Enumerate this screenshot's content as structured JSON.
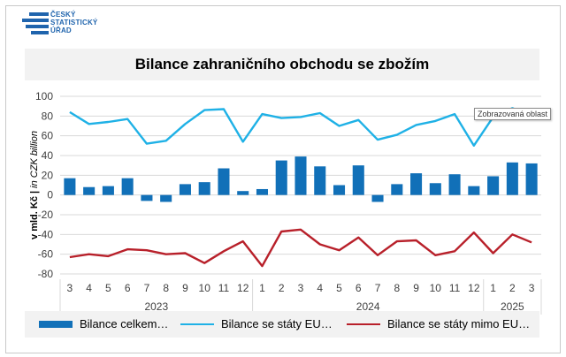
{
  "logo": {
    "line1": "ČESKÝ",
    "line2": "STATISTICKÝ",
    "line3": "ÚŘAD"
  },
  "tooltip": "Zobrazovaná oblast",
  "colors": {
    "bar": "#1170b8",
    "eu": "#1fb1e6",
    "non_eu": "#b8202a",
    "grid": "#d9d9d9"
  },
  "chart_data": {
    "type": "bar+line",
    "title": "Bilance zahraničního obchodu se zbožím",
    "ylabel_main": "v mld. Kč",
    "ylabel_sep": " | ",
    "ylabel_italic": "in CZK billion",
    "ylim": [
      -80,
      100
    ],
    "yticks": [
      100,
      80,
      60,
      40,
      20,
      0,
      -20,
      -40,
      -60,
      -80
    ],
    "categories": [
      "3",
      "4",
      "5",
      "6",
      "7",
      "8",
      "9",
      "10",
      "11",
      "12",
      "1",
      "2",
      "3",
      "4",
      "5",
      "6",
      "7",
      "8",
      "9",
      "10",
      "11",
      "12",
      "1",
      "2",
      "3"
    ],
    "year_groups": [
      {
        "label": "2023",
        "start": 0,
        "end": 9
      },
      {
        "label": "2024",
        "start": 10,
        "end": 21
      },
      {
        "label": "2025",
        "start": 22,
        "end": 24
      }
    ],
    "series": [
      {
        "name": "Bilance celkem…",
        "kind": "bar",
        "values": [
          17,
          8,
          9,
          17,
          -6,
          -7,
          11,
          13,
          27,
          4,
          6,
          35,
          39,
          29,
          10,
          30,
          -7,
          11,
          22,
          12,
          21,
          9,
          19,
          33,
          32
        ]
      },
      {
        "name": "Bilance se státy EU…",
        "kind": "line",
        "values": [
          84,
          72,
          74,
          77,
          52,
          55,
          72,
          86,
          87,
          54,
          82,
          78,
          79,
          83,
          70,
          76,
          56,
          61,
          71,
          75,
          82,
          50,
          79,
          88,
          80
        ]
      },
      {
        "name": "Bilance se státy mimo EU…",
        "kind": "line",
        "values": [
          -63,
          -60,
          -62,
          -55,
          -56,
          -60,
          -59,
          -69,
          -57,
          -47,
          -72,
          -37,
          -35,
          -50,
          -56,
          -43,
          -61,
          -47,
          -46,
          -61,
          -57,
          -38,
          -59,
          -40,
          -48
        ]
      }
    ]
  }
}
